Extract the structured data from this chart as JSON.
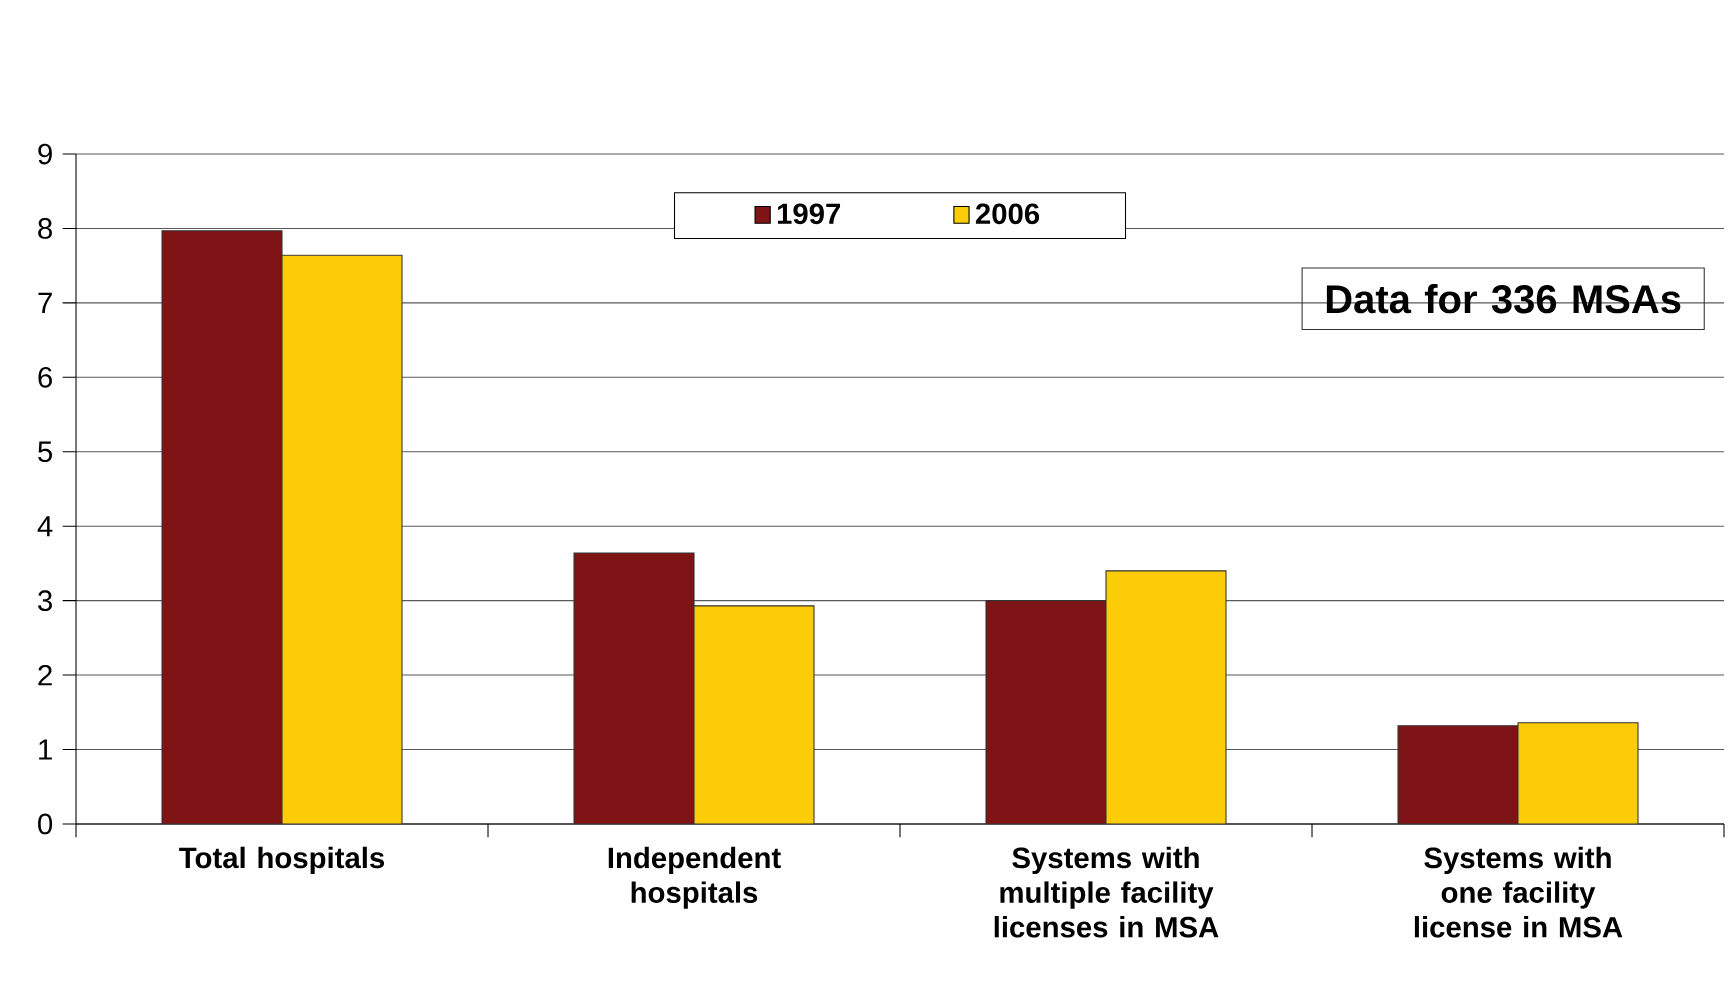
{
  "chart_data": {
    "type": "bar",
    "categories": [
      "Total hospitals",
      "Independent hospitals",
      "Systems with multiple facility licenses in MSA",
      "Systems with one facility license in MSA"
    ],
    "series": [
      {
        "name": "1997",
        "color": "#7f1416",
        "values": [
          7.97,
          3.64,
          3.0,
          1.32
        ]
      },
      {
        "name": "2006",
        "color": "#fccc08",
        "values": [
          7.64,
          2.93,
          3.4,
          1.36
        ]
      }
    ],
    "ylim": [
      0,
      9
    ],
    "yticks": [
      0,
      1,
      2,
      3,
      4,
      5,
      6,
      7,
      8,
      9
    ],
    "grid": "y",
    "legend": "top",
    "annotations": [
      "Data for 336 MSAs"
    ]
  }
}
